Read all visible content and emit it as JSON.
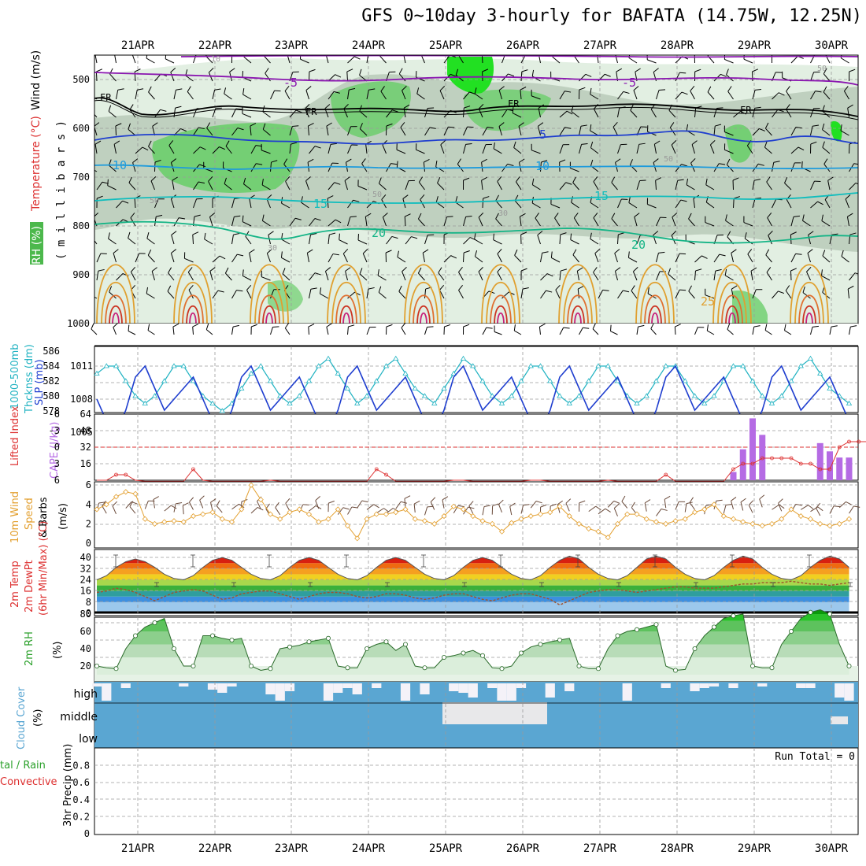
{
  "title": "GFS 0~10day 3-hourly for BAFATA (14.75W, 12.25N)",
  "dates": [
    "21APR",
    "22APR",
    "23APR",
    "24APR",
    "25APR",
    "26APR",
    "27APR",
    "28APR",
    "29APR",
    "30APR"
  ],
  "colors": {
    "frame": "#000000",
    "grid": "#9a9a9a",
    "rh_light": "#e2efe2",
    "rh_mid": "#b9cab9",
    "rh_dark": "#6cce6c",
    "rh_bright": "#22e022",
    "iso_violet": "#8a16b0",
    "iso_black": "#000000",
    "iso_blue": "#1f3ecf",
    "iso_sky": "#1e9bdc",
    "iso_teal": "#10bdbd",
    "iso_green": "#14b486",
    "iso_orange": "#e0a030",
    "iso_red": "#cc3322",
    "slp": "#1f3ecf",
    "thick": "#22b3c2",
    "li": "#dd3030",
    "cape": "#b56be4",
    "wind": "#e3a030",
    "rh2m": "#2aa02a",
    "cloud": "#5aa6d2",
    "cloud_clear": "#f4f2f8"
  },
  "panel1": {
    "ylabel_a": "Wind (m/s)",
    "ylabel_b": "Temperature (°C)",
    "ylabel_c": "RH (%)",
    "units": "( m i l l i b a r s )",
    "yticks": [
      "500",
      "600",
      "700",
      "800",
      "900",
      "1000"
    ],
    "iso_labels": {
      "m5a": "-5",
      "m5b": "-5",
      "fr1": "FR",
      "fr2": "FR",
      "fr3": "FR",
      "fr4": "FR",
      "p5": "5",
      "p10a": "10",
      "p10b": "10",
      "p15a": "15",
      "p15b": "15",
      "p20a": "20",
      "p20b": "20",
      "p25": "25"
    },
    "rh_labels": {
      "a": "10",
      "b": "50",
      "c": "30",
      "d": "50",
      "e": "30",
      "f": "50",
      "g": "50"
    }
  },
  "panel2": {
    "ylabel_a": "1000-500mb",
    "ylabel_b": "Thcknss (dm)",
    "ylabel_c": "SLP (mb)",
    "yticks_left": [
      "586",
      "584",
      "582",
      "580",
      "578"
    ],
    "yticks_right": [
      "1011",
      "1008",
      "1005"
    ]
  },
  "panel3": {
    "ylabel_a": "Lifted Index",
    "ylabel_b": "CAPE (J/kg)",
    "yticks_left": [
      "-6",
      "-3",
      "0",
      "3",
      "6"
    ],
    "yticks_right": [
      "64",
      "48",
      "32",
      "16"
    ]
  },
  "panel4": {
    "ylabel_a": "10m Wind",
    "ylabel_b": "Speed",
    "ylabel_c": "& Barbs",
    "ylabel_d": "(m/s)",
    "yticks": [
      "6",
      "4",
      "2",
      "0"
    ]
  },
  "panel5": {
    "ylabel_a": "2m Temp",
    "ylabel_b": "2m DewPt",
    "ylabel_c": "(6hr Min/Max) (°C)",
    "yticks": [
      "40",
      "32",
      "24",
      "16",
      "8",
      "0"
    ]
  },
  "panel6": {
    "ylabel_a": "2m RH",
    "ylabel_b": "(%)",
    "yticks": [
      "80",
      "60",
      "40",
      "20"
    ]
  },
  "panel7": {
    "ylabel_a": "Cloud Cover",
    "ylabel_b": "(%)",
    "levels": [
      "high",
      "middle",
      "low"
    ]
  },
  "panel8": {
    "ylabel_a": "tal / Rain",
    "ylabel_b": "Convective",
    "ylabel_c": "3hr Precip (mm)",
    "yticks": [
      "0.8",
      "0.6",
      "0.4",
      "0.2",
      "0"
    ],
    "run_total": "Run Total = 0"
  },
  "chart_data": [
    {
      "type": "line",
      "panel": "SLP (mb)",
      "x_unit": "3-hourly steps from 20APR 15Z",
      "series": [
        {
          "name": "SLP (mb)",
          "values": [
            1008,
            1006,
            1005,
            1007,
            1010,
            1011,
            1009,
            1007,
            1008,
            1009,
            1010,
            1008,
            1006,
            1005,
            1007,
            1010,
            1011,
            1009,
            1007,
            1008,
            1009,
            1010,
            1008,
            1006,
            1005,
            1007,
            1010,
            1011,
            1009,
            1007,
            1008,
            1009,
            1010,
            1008,
            1006,
            1005,
            1007,
            1010,
            1011,
            1009,
            1007,
            1008,
            1009,
            1010,
            1008,
            1006,
            1005,
            1007,
            1010,
            1011,
            1009,
            1007,
            1008,
            1009,
            1010,
            1008,
            1006,
            1005,
            1007,
            1010,
            1011,
            1009,
            1007,
            1008,
            1009,
            1010,
            1008,
            1006,
            1005,
            1007,
            1010,
            1011,
            1009,
            1007,
            1008,
            1009,
            1010,
            1008,
            1006
          ]
        }
      ]
    },
    {
      "type": "line",
      "panel": "1000-500mb Thcknss (dm)",
      "series": [
        {
          "name": "Thcknss (dm)",
          "values": [
            583,
            584,
            584,
            582,
            580,
            579,
            580,
            582,
            584,
            584,
            582,
            580,
            579,
            578,
            579,
            581,
            583,
            584,
            582,
            580,
            579,
            580,
            582,
            584,
            585,
            583,
            581,
            579,
            580,
            582,
            584,
            585,
            583,
            581,
            580,
            579,
            581,
            583,
            585,
            584,
            582,
            580,
            579,
            580,
            582,
            584,
            584,
            582,
            580,
            579,
            580,
            582,
            584,
            584,
            582,
            580,
            579,
            580,
            582,
            584,
            584,
            582,
            580,
            579,
            580,
            582,
            584,
            584,
            582,
            580,
            579,
            580,
            582,
            584,
            585,
            583,
            581,
            580,
            579
          ]
        }
      ]
    },
    {
      "type": "line",
      "panel": "Lifted Index",
      "series": [
        {
          "name": "Lifted Index",
          "values": [
            6,
            6,
            5,
            5,
            6,
            7,
            7,
            7,
            7,
            7,
            4,
            6,
            7,
            7,
            7,
            7,
            7,
            7,
            6,
            7,
            7,
            7,
            7,
            7,
            7,
            7,
            7,
            7,
            7,
            4,
            5,
            7,
            7,
            7,
            7,
            7,
            7,
            6,
            6,
            7,
            7,
            7,
            7,
            7,
            7,
            6,
            6,
            7,
            7,
            7,
            7,
            7,
            7,
            6,
            7,
            7,
            7,
            7,
            7,
            5,
            7,
            7,
            7,
            7,
            7,
            7,
            4,
            3,
            3,
            2,
            2,
            2,
            2,
            3,
            3,
            4,
            4,
            0,
            -1,
            -1,
            -1
          ]
        }
      ]
    },
    {
      "type": "bar",
      "panel": "CAPE (J/kg)",
      "bars": [
        {
          "step": 66,
          "value": 8
        },
        {
          "step": 67,
          "value": 30
        },
        {
          "step": 68,
          "value": 60
        },
        {
          "step": 69,
          "value": 44
        },
        {
          "step": 75,
          "value": 36
        },
        {
          "step": 76,
          "value": 28
        },
        {
          "step": 77,
          "value": 22
        },
        {
          "step": 78,
          "value": 22
        }
      ]
    },
    {
      "type": "line",
      "panel": "10m Wind Speed (m/s)",
      "series": [
        {
          "name": "10m Wind Speed",
          "values": [
            3.5,
            4,
            4.8,
            5.3,
            5.1,
            2.5,
            2,
            2.2,
            2.3,
            2.2,
            2.8,
            3,
            3.2,
            2.5,
            2.2,
            3.5,
            6,
            4.5,
            3,
            2.5,
            3.2,
            3.5,
            3,
            2.2,
            2.5,
            3.5,
            1.8,
            0.5,
            2.5,
            3,
            3,
            3.2,
            3.5,
            2.5,
            2.3,
            2,
            2.8,
            3.8,
            3.5,
            2.8,
            2.3,
            2,
            1.2,
            2.1,
            2.5,
            2.8,
            3,
            3.2,
            3.8,
            2.8,
            2,
            1.5,
            1.2,
            0.6,
            2,
            3,
            3,
            2.5,
            2.2,
            2,
            2.3,
            2.5,
            3.2,
            3.5,
            4,
            2.8,
            2.5,
            2.2,
            2,
            1.8,
            2,
            2.5,
            3.5,
            2.8,
            2.5,
            2,
            1.8,
            2,
            2.5
          ]
        }
      ]
    },
    {
      "type": "area",
      "panel": "2m Temp (°C)",
      "series": [
        {
          "name": "2m Temp",
          "values": [
            24,
            27,
            33,
            37,
            39,
            37,
            33,
            28,
            25,
            24,
            27,
            33,
            38,
            40,
            38,
            33,
            28,
            25,
            24,
            27,
            33,
            38,
            40,
            38,
            33,
            28,
            25,
            24,
            27,
            33,
            38,
            40,
            38,
            33,
            28,
            25,
            24,
            27,
            33,
            38,
            40,
            38,
            33,
            28,
            25,
            24,
            27,
            33,
            38,
            41,
            39,
            33,
            28,
            25,
            24,
            27,
            33,
            39,
            41,
            39,
            33,
            28,
            25,
            24,
            27,
            33,
            38,
            41,
            39,
            33,
            28,
            25,
            24,
            27,
            33,
            38,
            41,
            39,
            33
          ]
        },
        {
          "name": "2m DewPt",
          "values": [
            15,
            16,
            18,
            17,
            15,
            12,
            9,
            12,
            15,
            16,
            17,
            16,
            13,
            10,
            11,
            14,
            15,
            16,
            16,
            14,
            12,
            10,
            12,
            14,
            15,
            15,
            14,
            12,
            11,
            12,
            14,
            14,
            13,
            11,
            10,
            11,
            13,
            14,
            14,
            12,
            10,
            9,
            11,
            13,
            14,
            14,
            12,
            10,
            6,
            9,
            12,
            15,
            16,
            17,
            17,
            16,
            15,
            16,
            17,
            18,
            19,
            19,
            18,
            18,
            18,
            19,
            20,
            21,
            21,
            22,
            22,
            22,
            23,
            22,
            21,
            21,
            20,
            21,
            22
          ]
        }
      ]
    },
    {
      "type": "area",
      "panel": "2m RH (%)",
      "series": [
        {
          "name": "2m RH",
          "values": [
            20,
            18,
            17,
            40,
            55,
            65,
            70,
            75,
            40,
            20,
            20,
            55,
            55,
            52,
            50,
            52,
            20,
            15,
            17,
            40,
            42,
            44,
            48,
            50,
            52,
            20,
            18,
            18,
            40,
            45,
            48,
            38,
            45,
            20,
            18,
            18,
            30,
            32,
            35,
            38,
            32,
            18,
            17,
            20,
            35,
            42,
            45,
            48,
            50,
            52,
            20,
            17,
            17,
            40,
            55,
            60,
            62,
            65,
            68,
            20,
            15,
            16,
            40,
            55,
            65,
            75,
            78,
            80,
            20,
            18,
            18,
            45,
            60,
            75,
            82,
            85,
            80,
            45,
            20
          ]
        }
      ]
    },
    {
      "type": "bar",
      "panel": "3hr Precip (mm)",
      "ylim": [
        0,
        1
      ],
      "values": [],
      "note": "Run Total = 0"
    }
  ]
}
